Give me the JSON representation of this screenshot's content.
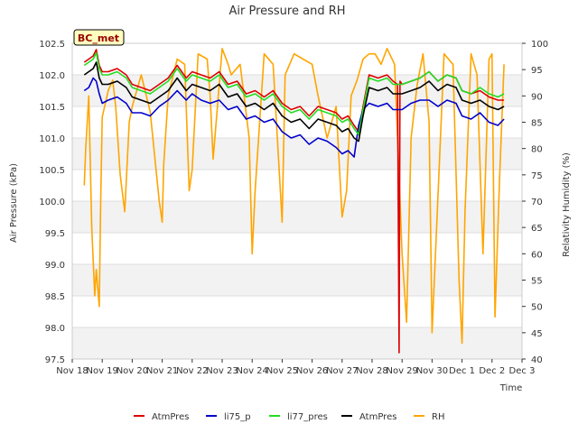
{
  "chart_data": {
    "type": "line",
    "title": "Air Pressure and RH",
    "xlabel": "Time",
    "ylabel": "Air Pressure (kPa)",
    "y2label": "Relativity Humidity (%)",
    "annotation": "BC_met",
    "x_ticks": [
      "Nov 18",
      "Nov 19",
      "Nov 20",
      "Nov 21",
      "Nov 22",
      "Nov 23",
      "Nov 24",
      "Nov 25",
      "Nov 26",
      "Nov 27",
      "Nov 28",
      "Nov 29",
      "Nov 30",
      "Dec 1",
      "Dec 2",
      "Dec 3"
    ],
    "x_range_days": [
      0,
      15
    ],
    "ylim": [
      97.5,
      102.5
    ],
    "y_ticks": [
      "97.5",
      "98.0",
      "98.5",
      "99.0",
      "99.5",
      "100.0",
      "100.5",
      "101.0",
      "101.5",
      "102.0",
      "102.5"
    ],
    "y2lim": [
      40,
      100
    ],
    "y2_ticks": [
      "40",
      "45",
      "50",
      "55",
      "60",
      "65",
      "70",
      "75",
      "80",
      "85",
      "90",
      "95",
      "100"
    ],
    "grid": true,
    "legend_position": "bottom",
    "series": [
      {
        "name": "AtmPres",
        "axis": "left",
        "color": "#dd0000",
        "x": [
          0.4,
          0.55,
          0.7,
          0.8,
          0.9,
          1.0,
          1.2,
          1.5,
          1.8,
          2.0,
          2.3,
          2.6,
          2.9,
          3.2,
          3.5,
          3.8,
          4.0,
          4.3,
          4.6,
          4.9,
          5.2,
          5.5,
          5.8,
          6.1,
          6.4,
          6.7,
          7.0,
          7.3,
          7.6,
          7.9,
          8.2,
          8.5,
          8.8,
          9.0,
          9.2,
          9.4,
          9.55,
          9.7,
          9.9,
          10.2,
          10.5,
          10.7,
          10.85,
          10.9,
          10.93,
          11.0,
          11.3,
          11.6,
          11.9,
          12.2,
          12.5,
          12.8,
          13.0,
          13.3,
          13.6,
          13.9,
          14.2,
          14.4
        ],
        "y": [
          102.2,
          102.25,
          102.3,
          102.4,
          102.15,
          102.05,
          102.05,
          102.1,
          102.0,
          101.85,
          101.8,
          101.75,
          101.85,
          101.95,
          102.15,
          101.95,
          102.05,
          102.0,
          101.95,
          102.05,
          101.85,
          101.9,
          101.7,
          101.75,
          101.65,
          101.75,
          101.55,
          101.45,
          101.5,
          101.35,
          101.5,
          101.45,
          101.4,
          101.3,
          101.35,
          101.2,
          101.1,
          101.5,
          102.0,
          101.95,
          102.0,
          101.9,
          101.85,
          97.6,
          101.9,
          101.85,
          101.9,
          101.95,
          102.05,
          101.9,
          102.0,
          101.95,
          101.75,
          101.7,
          101.75,
          101.65,
          101.6,
          101.6
        ]
      },
      {
        "name": "li75_p",
        "axis": "left",
        "color": "#0000cc",
        "x": [
          0.4,
          0.55,
          0.7,
          0.8,
          0.9,
          1.0,
          1.2,
          1.5,
          1.8,
          2.0,
          2.3,
          2.6,
          2.9,
          3.2,
          3.5,
          3.8,
          4.0,
          4.3,
          4.6,
          4.9,
          5.2,
          5.5,
          5.8,
          6.1,
          6.4,
          6.7,
          7.0,
          7.3,
          7.6,
          7.9,
          8.2,
          8.5,
          8.8,
          9.0,
          9.2,
          9.4,
          9.55,
          9.7,
          9.9,
          10.2,
          10.5,
          10.7,
          10.9,
          11.0,
          11.3,
          11.6,
          11.9,
          12.2,
          12.5,
          12.8,
          13.0,
          13.3,
          13.6,
          13.9,
          14.2,
          14.4
        ],
        "y": [
          101.75,
          101.8,
          101.95,
          101.9,
          101.7,
          101.55,
          101.6,
          101.65,
          101.55,
          101.4,
          101.4,
          101.35,
          101.5,
          101.6,
          101.75,
          101.6,
          101.7,
          101.6,
          101.55,
          101.6,
          101.45,
          101.5,
          101.3,
          101.35,
          101.25,
          101.3,
          101.1,
          101.0,
          101.05,
          100.9,
          101.0,
          100.95,
          100.85,
          100.75,
          100.8,
          100.7,
          101.2,
          101.45,
          101.55,
          101.5,
          101.55,
          101.45,
          101.45,
          101.45,
          101.55,
          101.6,
          101.6,
          101.5,
          101.6,
          101.55,
          101.35,
          101.3,
          101.4,
          101.25,
          101.2,
          101.3
        ]
      },
      {
        "name": "li77_pres",
        "axis": "left",
        "color": "#22dd22",
        "x": [
          0.4,
          0.55,
          0.7,
          0.8,
          0.9,
          1.0,
          1.2,
          1.5,
          1.8,
          2.0,
          2.3,
          2.6,
          2.9,
          3.2,
          3.5,
          3.8,
          4.0,
          4.3,
          4.6,
          4.9,
          5.2,
          5.5,
          5.8,
          6.1,
          6.4,
          6.7,
          7.0,
          7.3,
          7.6,
          7.9,
          8.2,
          8.5,
          8.8,
          9.0,
          9.2,
          9.4,
          9.55,
          9.7,
          9.9,
          10.2,
          10.5,
          10.7,
          10.9,
          11.0,
          11.3,
          11.6,
          11.9,
          12.2,
          12.5,
          12.8,
          13.0,
          13.3,
          13.6,
          13.9,
          14.2,
          14.4
        ],
        "y": [
          102.15,
          102.2,
          102.25,
          102.35,
          102.1,
          102.0,
          102.0,
          102.05,
          101.95,
          101.8,
          101.75,
          101.7,
          101.8,
          101.9,
          102.1,
          101.9,
          102.0,
          101.95,
          101.9,
          102.0,
          101.8,
          101.85,
          101.65,
          101.7,
          101.6,
          101.7,
          101.5,
          101.4,
          101.45,
          101.3,
          101.45,
          101.4,
          101.35,
          101.25,
          101.3,
          101.15,
          101.05,
          101.45,
          101.95,
          101.9,
          101.95,
          101.85,
          101.85,
          101.85,
          101.9,
          101.95,
          102.05,
          101.9,
          102.0,
          101.95,
          101.75,
          101.7,
          101.8,
          101.7,
          101.65,
          101.7
        ]
      },
      {
        "name": "AtmPres",
        "axis": "left",
        "color": "#000000",
        "x": [
          0.4,
          0.55,
          0.7,
          0.8,
          0.9,
          1.0,
          1.2,
          1.5,
          1.8,
          2.0,
          2.3,
          2.6,
          2.9,
          3.2,
          3.5,
          3.8,
          4.0,
          4.3,
          4.6,
          4.9,
          5.2,
          5.5,
          5.8,
          6.1,
          6.4,
          6.7,
          7.0,
          7.3,
          7.6,
          7.9,
          8.2,
          8.5,
          8.8,
          9.0,
          9.2,
          9.4,
          9.55,
          9.7,
          9.9,
          10.2,
          10.5,
          10.7,
          10.9,
          11.0,
          11.3,
          11.6,
          11.9,
          12.2,
          12.5,
          12.8,
          13.0,
          13.3,
          13.6,
          13.9,
          14.2,
          14.4
        ],
        "y": [
          102.0,
          102.05,
          102.1,
          102.2,
          101.95,
          101.85,
          101.85,
          101.9,
          101.8,
          101.65,
          101.6,
          101.55,
          101.65,
          101.75,
          101.95,
          101.75,
          101.85,
          101.8,
          101.75,
          101.85,
          101.65,
          101.7,
          101.5,
          101.55,
          101.45,
          101.55,
          101.35,
          101.25,
          101.3,
          101.15,
          101.3,
          101.25,
          101.2,
          101.1,
          101.15,
          101.0,
          100.95,
          101.35,
          101.8,
          101.75,
          101.8,
          101.7,
          101.7,
          101.7,
          101.75,
          101.8,
          101.9,
          101.75,
          101.85,
          101.8,
          101.6,
          101.55,
          101.6,
          101.5,
          101.45,
          101.5
        ]
      },
      {
        "name": "RH",
        "axis": "right",
        "color": "#ffa500",
        "x": [
          0.4,
          0.45,
          0.55,
          0.65,
          0.75,
          0.8,
          0.9,
          0.95,
          1.0,
          1.2,
          1.35,
          1.45,
          1.6,
          1.75,
          1.9,
          2.0,
          2.3,
          2.6,
          2.9,
          3.0,
          3.05,
          3.2,
          3.5,
          3.75,
          3.9,
          4.0,
          4.2,
          4.5,
          4.6,
          4.7,
          5.0,
          5.2,
          5.3,
          5.6,
          5.9,
          6.0,
          6.1,
          6.4,
          6.7,
          6.9,
          7.0,
          7.1,
          7.4,
          7.7,
          8.0,
          8.2,
          8.5,
          8.8,
          9.0,
          9.15,
          9.3,
          9.5,
          9.7,
          9.9,
          10.1,
          10.3,
          10.5,
          10.75,
          10.85,
          11.0,
          11.15,
          11.3,
          11.5,
          11.7,
          11.9,
          12.0,
          12.1,
          12.4,
          12.7,
          12.9,
          13.0,
          13.1,
          13.3,
          13.5,
          13.7,
          13.9,
          14.0,
          14.1,
          14.25,
          14.4
        ],
        "y": [
          73,
          80,
          90,
          65,
          52,
          57,
          50,
          70,
          86,
          91,
          93,
          88,
          75,
          68,
          85,
          88,
          94,
          87,
          70,
          66,
          77,
          90,
          97,
          96,
          72,
          76,
          98,
          97,
          90,
          78,
          99,
          96,
          94,
          96,
          82,
          60,
          72,
          98,
          96,
          76,
          66,
          94,
          98,
          97,
          96,
          90,
          82,
          88,
          67,
          72,
          90,
          93,
          97,
          98,
          98,
          96,
          99,
          96,
          82,
          60,
          47,
          82,
          92,
          98,
          85,
          45,
          58,
          98,
          96,
          55,
          43,
          68,
          98,
          94,
          60,
          97,
          98,
          48,
          74,
          96
        ]
      }
    ]
  }
}
